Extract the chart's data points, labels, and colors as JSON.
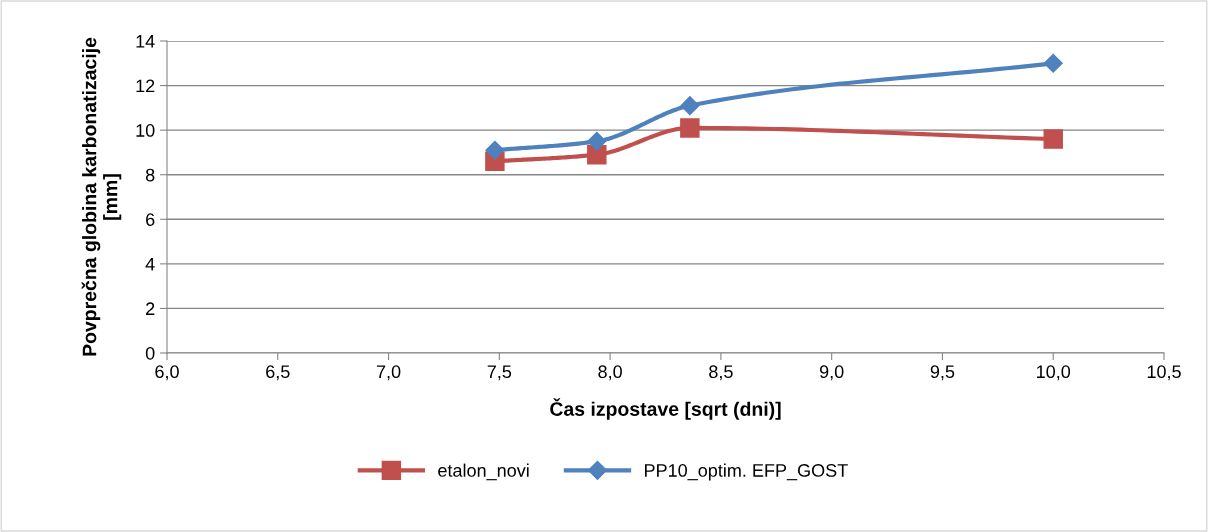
{
  "chart_data": {
    "type": "line",
    "xlabel": "Čas izpostave [sqrt (dni)]",
    "ylabel": "Povprečna globina karbonatizacije\n[mm]",
    "x": [
      7.48,
      7.94,
      8.36,
      10.0
    ],
    "series": [
      {
        "name": "etalon_novi",
        "color": "#c0504d",
        "marker": "square",
        "values": [
          8.6,
          8.9,
          10.1,
          9.6
        ]
      },
      {
        "name": "PP10_optim. EFP_GOST",
        "color": "#4f81bd",
        "marker": "diamond",
        "values": [
          9.1,
          9.5,
          11.1,
          13.0
        ]
      }
    ],
    "xlim": [
      6.0,
      10.5
    ],
    "xticks": [
      {
        "value": 6.0,
        "label": "6,0"
      },
      {
        "value": 6.5,
        "label": "6,5"
      },
      {
        "value": 7.0,
        "label": "7,0"
      },
      {
        "value": 7.5,
        "label": "7,5"
      },
      {
        "value": 8.0,
        "label": "8,0"
      },
      {
        "value": 8.5,
        "label": "8,5"
      },
      {
        "value": 9.0,
        "label": "9,0"
      },
      {
        "value": 9.5,
        "label": "9,5"
      },
      {
        "value": 10.0,
        "label": "10,0"
      },
      {
        "value": 10.5,
        "label": "10,5"
      }
    ],
    "ylim": [
      0,
      14
    ],
    "yticks": [
      0,
      2,
      4,
      6,
      8,
      10,
      12,
      14
    ],
    "grid": "y",
    "legend": "bottom",
    "line_style": "solid"
  }
}
